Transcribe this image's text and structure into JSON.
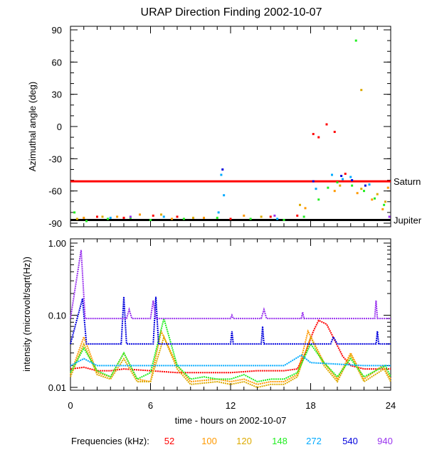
{
  "chart_data": [
    {
      "type": "scatter",
      "title": "URAP Direction Finding  2002-10-07",
      "ylabel": "Azimuthal angle (deg)",
      "xlim": [
        0,
        24
      ],
      "ylim": [
        -90,
        90
      ],
      "yticks": [
        "90",
        "60",
        "30",
        "0",
        "-30",
        "-60",
        "-90"
      ],
      "reference_lines": [
        {
          "name": "Saturn",
          "y": -51,
          "color": "#ff0000"
        },
        {
          "name": "Jupiter",
          "y": -87,
          "color": "#000000"
        }
      ],
      "series": [
        {
          "color": "#ff0000",
          "points": [
            [
              2.0,
              -84
            ],
            [
              4.0,
              -85
            ],
            [
              6.2,
              -83
            ],
            [
              8.0,
              -84
            ],
            [
              12.0,
              -86
            ],
            [
              15.0,
              -84
            ],
            [
              17.0,
              -83
            ],
            [
              18.6,
              -10
            ],
            [
              19.2,
              2
            ],
            [
              18.2,
              -7
            ],
            [
              19.8,
              -5
            ],
            [
              20.6,
              -44
            ]
          ]
        },
        {
          "color": "#ff9900",
          "points": [
            [
              1.0,
              -85
            ],
            [
              3.5,
              -84
            ],
            [
              5.2,
              -82
            ],
            [
              7.6,
              -86
            ],
            [
              10.0,
              -85
            ],
            [
              13.0,
              -83
            ],
            [
              17.6,
              -76
            ],
            [
              19.8,
              -60
            ],
            [
              21.5,
              -62
            ],
            [
              22.6,
              -68
            ],
            [
              23.4,
              -77
            ],
            [
              23.8,
              -57
            ]
          ]
        },
        {
          "color": "#ddaa00",
          "points": [
            [
              0.5,
              -86
            ],
            [
              2.4,
              -84
            ],
            [
              6.8,
              -82
            ],
            [
              9.2,
              -85
            ],
            [
              14.3,
              -84
            ],
            [
              17.2,
              -73
            ],
            [
              20.2,
              -55
            ],
            [
              21.8,
              -58
            ],
            [
              23.0,
              -63
            ],
            [
              23.6,
              -70
            ],
            [
              21.8,
              34
            ]
          ]
        },
        {
          "color": "#22ee22",
          "points": [
            [
              0.3,
              -80
            ],
            [
              1.2,
              -88
            ],
            [
              2.8,
              -86
            ],
            [
              4.5,
              -85
            ],
            [
              6.0,
              -87
            ],
            [
              8.5,
              -86
            ],
            [
              11.0,
              -85
            ],
            [
              13.5,
              -86
            ],
            [
              16.0,
              -87
            ],
            [
              17.5,
              -84
            ],
            [
              18.6,
              -68
            ],
            [
              19.3,
              -57
            ],
            [
              20.0,
              -52
            ],
            [
              21.1,
              -55
            ],
            [
              22.0,
              -60
            ],
            [
              22.8,
              -67
            ],
            [
              23.5,
              -73
            ],
            [
              21.4,
              80
            ]
          ]
        },
        {
          "color": "#00aaff",
          "points": [
            [
              3.0,
              -85
            ],
            [
              7.0,
              -84
            ],
            [
              11.1,
              -80
            ],
            [
              11.3,
              -45
            ],
            [
              11.5,
              -64
            ],
            [
              15.5,
              -86
            ],
            [
              18.4,
              -58
            ],
            [
              19.6,
              -45
            ],
            [
              20.4,
              -49
            ],
            [
              21.0,
              -47
            ],
            [
              22.4,
              -54
            ]
          ]
        },
        {
          "color": "#0000dd",
          "points": [
            [
              11.4,
              -40
            ],
            [
              18.2,
              -51
            ],
            [
              20.3,
              -46
            ],
            [
              21.1,
              -50
            ],
            [
              22.1,
              -55
            ]
          ]
        },
        {
          "color": "#9933ee",
          "points": [
            [
              4.5,
              -84
            ],
            [
              15.3,
              -83
            ],
            [
              23.9,
              -84
            ]
          ]
        }
      ]
    },
    {
      "type": "line",
      "ylabel": "intensity (microvolt/sqrt(Hz))",
      "xlabel": "time - hours on 2002-10-07",
      "xlim": [
        0,
        24
      ],
      "ylim": [
        0.01,
        1.0
      ],
      "yscale": "log",
      "xticks": [
        "0",
        "6",
        "12",
        "18",
        "24"
      ],
      "yticks": [
        "1.00",
        "0.10",
        "0.01"
      ],
      "legend_title": "Frequencies (kHz):",
      "legend_position": "bottom",
      "series": [
        {
          "name": "52",
          "color": "#ff0000",
          "points": [
            [
              0,
              0.018
            ],
            [
              1,
              0.019
            ],
            [
              2,
              0.017
            ],
            [
              3,
              0.017
            ],
            [
              4,
              0.018
            ],
            [
              6,
              0.017
            ],
            [
              8,
              0.016
            ],
            [
              10,
              0.016
            ],
            [
              12,
              0.016
            ],
            [
              14,
              0.017
            ],
            [
              16,
              0.017
            ],
            [
              17,
              0.018
            ],
            [
              17.6,
              0.03
            ],
            [
              18.2,
              0.06
            ],
            [
              18.6,
              0.085
            ],
            [
              19.2,
              0.075
            ],
            [
              19.8,
              0.045
            ],
            [
              20.4,
              0.027
            ],
            [
              21,
              0.02
            ],
            [
              22,
              0.018
            ],
            [
              24,
              0.018
            ]
          ]
        },
        {
          "name": "100",
          "color": "#ff9900",
          "points": [
            [
              0,
              0.015
            ],
            [
              1,
              0.05
            ],
            [
              2,
              0.016
            ],
            [
              3,
              0.014
            ],
            [
              4,
              0.03
            ],
            [
              5,
              0.013
            ],
            [
              6,
              0.012
            ],
            [
              6.8,
              0.06
            ],
            [
              8,
              0.02
            ],
            [
              9,
              0.012
            ],
            [
              11,
              0.013
            ],
            [
              12,
              0.012
            ],
            [
              13,
              0.013
            ],
            [
              14,
              0.011
            ],
            [
              15,
              0.012
            ],
            [
              16,
              0.012
            ],
            [
              17,
              0.015
            ],
            [
              17.8,
              0.06
            ],
            [
              19,
              0.022
            ],
            [
              20,
              0.013
            ],
            [
              21,
              0.03
            ],
            [
              22,
              0.013
            ],
            [
              23.4,
              0.02
            ],
            [
              24,
              0.013
            ]
          ]
        },
        {
          "name": "120",
          "color": "#ddaa00",
          "points": [
            [
              0,
              0.014
            ],
            [
              1,
              0.04
            ],
            [
              2,
              0.015
            ],
            [
              3,
              0.013
            ],
            [
              4,
              0.025
            ],
            [
              5,
              0.012
            ],
            [
              6,
              0.012
            ],
            [
              7,
              0.05
            ],
            [
              8,
              0.018
            ],
            [
              9,
              0.011
            ],
            [
              11,
              0.012
            ],
            [
              12,
              0.011
            ],
            [
              13,
              0.012
            ],
            [
              14,
              0.01
            ],
            [
              15,
              0.011
            ],
            [
              16,
              0.011
            ],
            [
              17,
              0.014
            ],
            [
              18,
              0.05
            ],
            [
              19,
              0.02
            ],
            [
              20,
              0.012
            ],
            [
              21,
              0.028
            ],
            [
              22,
              0.012
            ],
            [
              23.5,
              0.018
            ],
            [
              24,
              0.012
            ]
          ]
        },
        {
          "name": "148",
          "color": "#22ee22",
          "points": [
            [
              0,
              0.016
            ],
            [
              1,
              0.035
            ],
            [
              2,
              0.017
            ],
            [
              3,
              0.014
            ],
            [
              4,
              0.03
            ],
            [
              5,
              0.013
            ],
            [
              6,
              0.016
            ],
            [
              7,
              0.09
            ],
            [
              8,
              0.02
            ],
            [
              9,
              0.013
            ],
            [
              10,
              0.014
            ],
            [
              11,
              0.013
            ],
            [
              12,
              0.013
            ],
            [
              13,
              0.015
            ],
            [
              14,
              0.012
            ],
            [
              15,
              0.013
            ],
            [
              16,
              0.013
            ],
            [
              17,
              0.016
            ],
            [
              18,
              0.04
            ],
            [
              19,
              0.022
            ],
            [
              20,
              0.014
            ],
            [
              21,
              0.025
            ],
            [
              22,
              0.014
            ],
            [
              23.6,
              0.02
            ],
            [
              24,
              0.014
            ]
          ]
        },
        {
          "name": "272",
          "color": "#00aaff",
          "points": [
            [
              0,
              0.02
            ],
            [
              1,
              0.025
            ],
            [
              2,
              0.02
            ],
            [
              4,
              0.02
            ],
            [
              6,
              0.02
            ],
            [
              8,
              0.02
            ],
            [
              10,
              0.02
            ],
            [
              12,
              0.02
            ],
            [
              14,
              0.02
            ],
            [
              16,
              0.02
            ],
            [
              17.3,
              0.028
            ],
            [
              18,
              0.022
            ],
            [
              20,
              0.021
            ],
            [
              22,
              0.02
            ],
            [
              24,
              0.02
            ]
          ]
        },
        {
          "name": "540",
          "color": "#0000dd",
          "points": [
            [
              0,
              0.04
            ],
            [
              0.9,
              0.17
            ],
            [
              1.2,
              0.04
            ],
            [
              3.8,
              0.04
            ],
            [
              4.0,
              0.18
            ],
            [
              4.2,
              0.04
            ],
            [
              6.2,
              0.04
            ],
            [
              6.4,
              0.18
            ],
            [
              6.6,
              0.04
            ],
            [
              12,
              0.04
            ],
            [
              12.1,
              0.06
            ],
            [
              12.2,
              0.04
            ],
            [
              14.3,
              0.04
            ],
            [
              14.4,
              0.07
            ],
            [
              14.5,
              0.04
            ],
            [
              18,
              0.04
            ],
            [
              19.5,
              0.04
            ],
            [
              19.7,
              0.05
            ],
            [
              20,
              0.04
            ],
            [
              22.9,
              0.04
            ],
            [
              23,
              0.06
            ],
            [
              23.1,
              0.04
            ],
            [
              24,
              0.04
            ]
          ]
        },
        {
          "name": "940",
          "color": "#9933ee",
          "points": [
            [
              0,
              0.09
            ],
            [
              0.8,
              0.8
            ],
            [
              1.1,
              0.09
            ],
            [
              4.2,
              0.09
            ],
            [
              4.4,
              0.12
            ],
            [
              4.6,
              0.09
            ],
            [
              6.0,
              0.09
            ],
            [
              6.2,
              0.16
            ],
            [
              6.4,
              0.09
            ],
            [
              12,
              0.09
            ],
            [
              12.1,
              0.1
            ],
            [
              12.2,
              0.09
            ],
            [
              14.3,
              0.09
            ],
            [
              14.5,
              0.12
            ],
            [
              14.7,
              0.09
            ],
            [
              17.3,
              0.09
            ],
            [
              17.4,
              0.11
            ],
            [
              17.5,
              0.09
            ],
            [
              22.8,
              0.09
            ],
            [
              22.9,
              0.16
            ],
            [
              23.0,
              0.09
            ],
            [
              24,
              0.09
            ]
          ]
        }
      ]
    }
  ]
}
